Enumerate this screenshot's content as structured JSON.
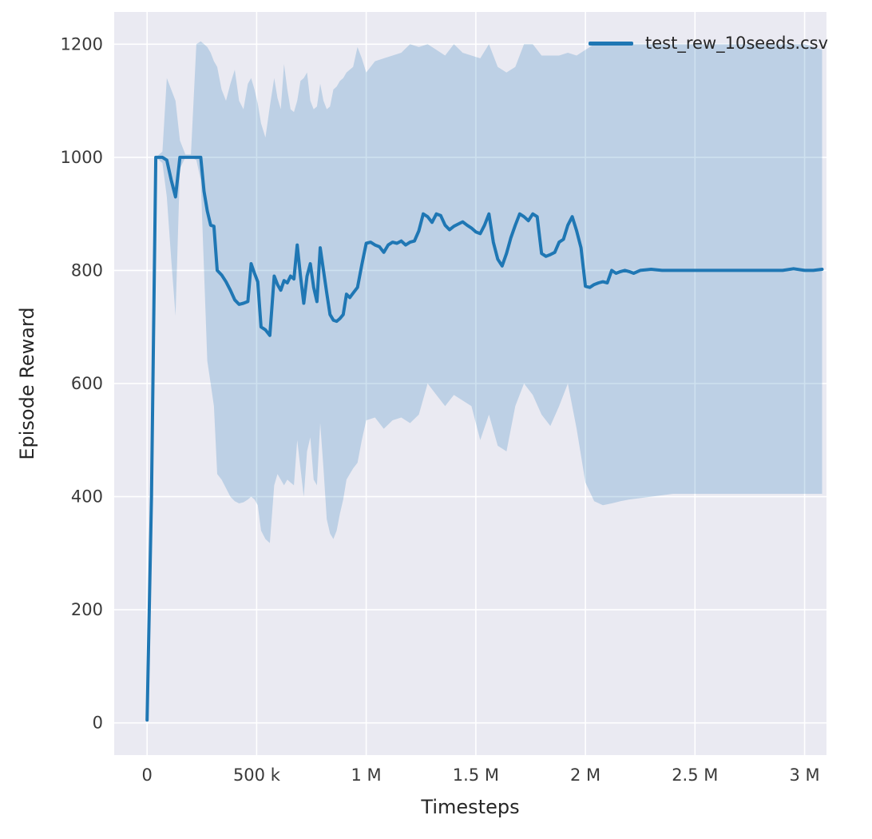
{
  "figure": {
    "background": "#ffffff",
    "plot_background": "#eaeaf2",
    "grid_color": "#ffffff",
    "text_color": "#3a3a3a"
  },
  "legend": {
    "label": "test_rew_10seeds.csv",
    "line_color": "#1f77b4"
  },
  "chart_data": {
    "type": "line",
    "title": "",
    "xlabel": "Timesteps",
    "ylabel": "Episode Reward",
    "grid": true,
    "legend_position": "upper right",
    "xlim": [
      -150000,
      3100000
    ],
    "ylim": [
      -57,
      1257
    ],
    "x_ticks": [
      {
        "v": 0,
        "label": "0"
      },
      {
        "v": 500000,
        "label": "500 k"
      },
      {
        "v": 1000000,
        "label": "1 M"
      },
      {
        "v": 1500000,
        "label": "1.5 M"
      },
      {
        "v": 2000000,
        "label": "2 M"
      },
      {
        "v": 2500000,
        "label": "2.5 M"
      },
      {
        "v": 3000000,
        "label": "3 M"
      }
    ],
    "y_ticks": [
      {
        "v": 0,
        "label": "0"
      },
      {
        "v": 200,
        "label": "200"
      },
      {
        "v": 400,
        "label": "400"
      },
      {
        "v": 600,
        "label": "600"
      },
      {
        "v": 800,
        "label": "800"
      },
      {
        "v": 1000,
        "label": "1000"
      },
      {
        "v": 1200,
        "label": "1200"
      }
    ],
    "series": [
      {
        "name": "test_rew_10seeds.csv",
        "color": "#1f77b4",
        "line_width": 4,
        "points": [
          [
            0,
            5
          ],
          [
            20000,
            400
          ],
          [
            40000,
            1000
          ],
          [
            70000,
            1000
          ],
          [
            90000,
            995
          ],
          [
            110000,
            960
          ],
          [
            130000,
            930
          ],
          [
            150000,
            1000
          ],
          [
            175000,
            1000
          ],
          [
            200000,
            1000
          ],
          [
            225000,
            1000
          ],
          [
            245000,
            1000
          ],
          [
            260000,
            940
          ],
          [
            275000,
            905
          ],
          [
            290000,
            880
          ],
          [
            305000,
            878
          ],
          [
            320000,
            800
          ],
          [
            340000,
            792
          ],
          [
            360000,
            780
          ],
          [
            380000,
            765
          ],
          [
            400000,
            748
          ],
          [
            420000,
            740
          ],
          [
            440000,
            742
          ],
          [
            460000,
            745
          ],
          [
            475000,
            812
          ],
          [
            490000,
            795
          ],
          [
            505000,
            780
          ],
          [
            520000,
            700
          ],
          [
            540000,
            695
          ],
          [
            560000,
            685
          ],
          [
            580000,
            790
          ],
          [
            595000,
            775
          ],
          [
            610000,
            765
          ],
          [
            625000,
            782
          ],
          [
            640000,
            778
          ],
          [
            655000,
            790
          ],
          [
            670000,
            785
          ],
          [
            685000,
            845
          ],
          [
            700000,
            790
          ],
          [
            715000,
            742
          ],
          [
            730000,
            790
          ],
          [
            745000,
            812
          ],
          [
            760000,
            770
          ],
          [
            775000,
            745
          ],
          [
            790000,
            840
          ],
          [
            805000,
            800
          ],
          [
            820000,
            760
          ],
          [
            835000,
            722
          ],
          [
            850000,
            712
          ],
          [
            865000,
            710
          ],
          [
            880000,
            715
          ],
          [
            895000,
            722
          ],
          [
            910000,
            758
          ],
          [
            925000,
            752
          ],
          [
            940000,
            760
          ],
          [
            960000,
            770
          ],
          [
            980000,
            810
          ],
          [
            1000000,
            848
          ],
          [
            1020000,
            850
          ],
          [
            1040000,
            845
          ],
          [
            1060000,
            842
          ],
          [
            1080000,
            832
          ],
          [
            1100000,
            845
          ],
          [
            1120000,
            850
          ],
          [
            1140000,
            848
          ],
          [
            1160000,
            852
          ],
          [
            1180000,
            845
          ],
          [
            1200000,
            850
          ],
          [
            1220000,
            852
          ],
          [
            1240000,
            870
          ],
          [
            1260000,
            900
          ],
          [
            1280000,
            895
          ],
          [
            1300000,
            885
          ],
          [
            1320000,
            900
          ],
          [
            1340000,
            897
          ],
          [
            1360000,
            880
          ],
          [
            1380000,
            872
          ],
          [
            1400000,
            878
          ],
          [
            1420000,
            882
          ],
          [
            1440000,
            886
          ],
          [
            1460000,
            880
          ],
          [
            1480000,
            875
          ],
          [
            1500000,
            868
          ],
          [
            1520000,
            865
          ],
          [
            1540000,
            880
          ],
          [
            1560000,
            900
          ],
          [
            1580000,
            850
          ],
          [
            1600000,
            820
          ],
          [
            1620000,
            808
          ],
          [
            1640000,
            830
          ],
          [
            1660000,
            858
          ],
          [
            1680000,
            880
          ],
          [
            1700000,
            900
          ],
          [
            1720000,
            895
          ],
          [
            1740000,
            888
          ],
          [
            1760000,
            900
          ],
          [
            1780000,
            895
          ],
          [
            1800000,
            830
          ],
          [
            1820000,
            825
          ],
          [
            1840000,
            828
          ],
          [
            1860000,
            832
          ],
          [
            1880000,
            850
          ],
          [
            1900000,
            855
          ],
          [
            1920000,
            880
          ],
          [
            1940000,
            895
          ],
          [
            1960000,
            870
          ],
          [
            1980000,
            840
          ],
          [
            2000000,
            772
          ],
          [
            2020000,
            770
          ],
          [
            2040000,
            775
          ],
          [
            2060000,
            778
          ],
          [
            2080000,
            780
          ],
          [
            2100000,
            778
          ],
          [
            2120000,
            800
          ],
          [
            2140000,
            795
          ],
          [
            2160000,
            798
          ],
          [
            2180000,
            800
          ],
          [
            2200000,
            798
          ],
          [
            2220000,
            795
          ],
          [
            2250000,
            800
          ],
          [
            2300000,
            802
          ],
          [
            2350000,
            800
          ],
          [
            2400000,
            800
          ],
          [
            2500000,
            800
          ],
          [
            2600000,
            800
          ],
          [
            2700000,
            800
          ],
          [
            2800000,
            800
          ],
          [
            2900000,
            800
          ],
          [
            2950000,
            803
          ],
          [
            3000000,
            800
          ],
          [
            3040000,
            800
          ],
          [
            3080000,
            802
          ]
        ]
      }
    ],
    "band": {
      "name": "confidence-band",
      "color": "#1f77b4",
      "opacity": 0.22,
      "points": [
        [
          0,
          5,
          5
        ],
        [
          20000,
          380,
          420
        ],
        [
          40000,
          1000,
          1000
        ],
        [
          70000,
          990,
          1010
        ],
        [
          90000,
          930,
          1140
        ],
        [
          110000,
          820,
          1120
        ],
        [
          130000,
          720,
          1100
        ],
        [
          150000,
          980,
          1030
        ],
        [
          175000,
          1000,
          1005
        ],
        [
          200000,
          1000,
          1005
        ],
        [
          225000,
          995,
          1200
        ],
        [
          245000,
          960,
          1205
        ],
        [
          260000,
          800,
          1200
        ],
        [
          275000,
          640,
          1195
        ],
        [
          290000,
          600,
          1185
        ],
        [
          305000,
          560,
          1170
        ],
        [
          320000,
          440,
          1160
        ],
        [
          340000,
          430,
          1120
        ],
        [
          360000,
          415,
          1100
        ],
        [
          380000,
          400,
          1130
        ],
        [
          400000,
          392,
          1155
        ],
        [
          420000,
          388,
          1100
        ],
        [
          440000,
          390,
          1085
        ],
        [
          460000,
          395,
          1130
        ],
        [
          475000,
          400,
          1140
        ],
        [
          490000,
          395,
          1120
        ],
        [
          505000,
          385,
          1095
        ],
        [
          520000,
          340,
          1060
        ],
        [
          540000,
          325,
          1035
        ],
        [
          560000,
          318,
          1090
        ],
        [
          580000,
          420,
          1140
        ],
        [
          595000,
          440,
          1105
        ],
        [
          610000,
          430,
          1085
        ],
        [
          625000,
          420,
          1165
        ],
        [
          640000,
          430,
          1120
        ],
        [
          655000,
          425,
          1085
        ],
        [
          670000,
          420,
          1080
        ],
        [
          685000,
          500,
          1100
        ],
        [
          700000,
          450,
          1135
        ],
        [
          715000,
          400,
          1140
        ],
        [
          730000,
          480,
          1150
        ],
        [
          745000,
          505,
          1100
        ],
        [
          760000,
          430,
          1085
        ],
        [
          775000,
          420,
          1090
        ],
        [
          790000,
          530,
          1130
        ],
        [
          805000,
          450,
          1100
        ],
        [
          820000,
          360,
          1085
        ],
        [
          835000,
          335,
          1090
        ],
        [
          850000,
          325,
          1120
        ],
        [
          865000,
          340,
          1125
        ],
        [
          880000,
          370,
          1135
        ],
        [
          895000,
          395,
          1140
        ],
        [
          910000,
          430,
          1150
        ],
        [
          925000,
          440,
          1155
        ],
        [
          940000,
          450,
          1160
        ],
        [
          960000,
          460,
          1195
        ],
        [
          980000,
          500,
          1175
        ],
        [
          1000000,
          535,
          1150
        ],
        [
          1040000,
          540,
          1170
        ],
        [
          1080000,
          520,
          1175
        ],
        [
          1120000,
          535,
          1180
        ],
        [
          1160000,
          540,
          1185
        ],
        [
          1200000,
          530,
          1200
        ],
        [
          1240000,
          545,
          1195
        ],
        [
          1280000,
          600,
          1200
        ],
        [
          1320000,
          580,
          1190
        ],
        [
          1360000,
          560,
          1180
        ],
        [
          1400000,
          580,
          1200
        ],
        [
          1440000,
          570,
          1185
        ],
        [
          1480000,
          560,
          1180
        ],
        [
          1520000,
          500,
          1175
        ],
        [
          1560000,
          545,
          1200
        ],
        [
          1600000,
          490,
          1160
        ],
        [
          1640000,
          480,
          1150
        ],
        [
          1680000,
          560,
          1160
        ],
        [
          1720000,
          600,
          1200
        ],
        [
          1760000,
          580,
          1200
        ],
        [
          1800000,
          545,
          1180
        ],
        [
          1840000,
          525,
          1180
        ],
        [
          1880000,
          560,
          1180
        ],
        [
          1920000,
          600,
          1185
        ],
        [
          1960000,
          520,
          1180
        ],
        [
          2000000,
          425,
          1190
        ],
        [
          2040000,
          392,
          1200
        ],
        [
          2080000,
          385,
          1200
        ],
        [
          2120000,
          388,
          1198
        ],
        [
          2160000,
          392,
          1200
        ],
        [
          2200000,
          395,
          1200
        ],
        [
          2300000,
          400,
          1200
        ],
        [
          2400000,
          405,
          1200
        ],
        [
          2600000,
          405,
          1200
        ],
        [
          2800000,
          405,
          1200
        ],
        [
          3000000,
          405,
          1200
        ],
        [
          3080000,
          405,
          1190
        ]
      ]
    }
  }
}
